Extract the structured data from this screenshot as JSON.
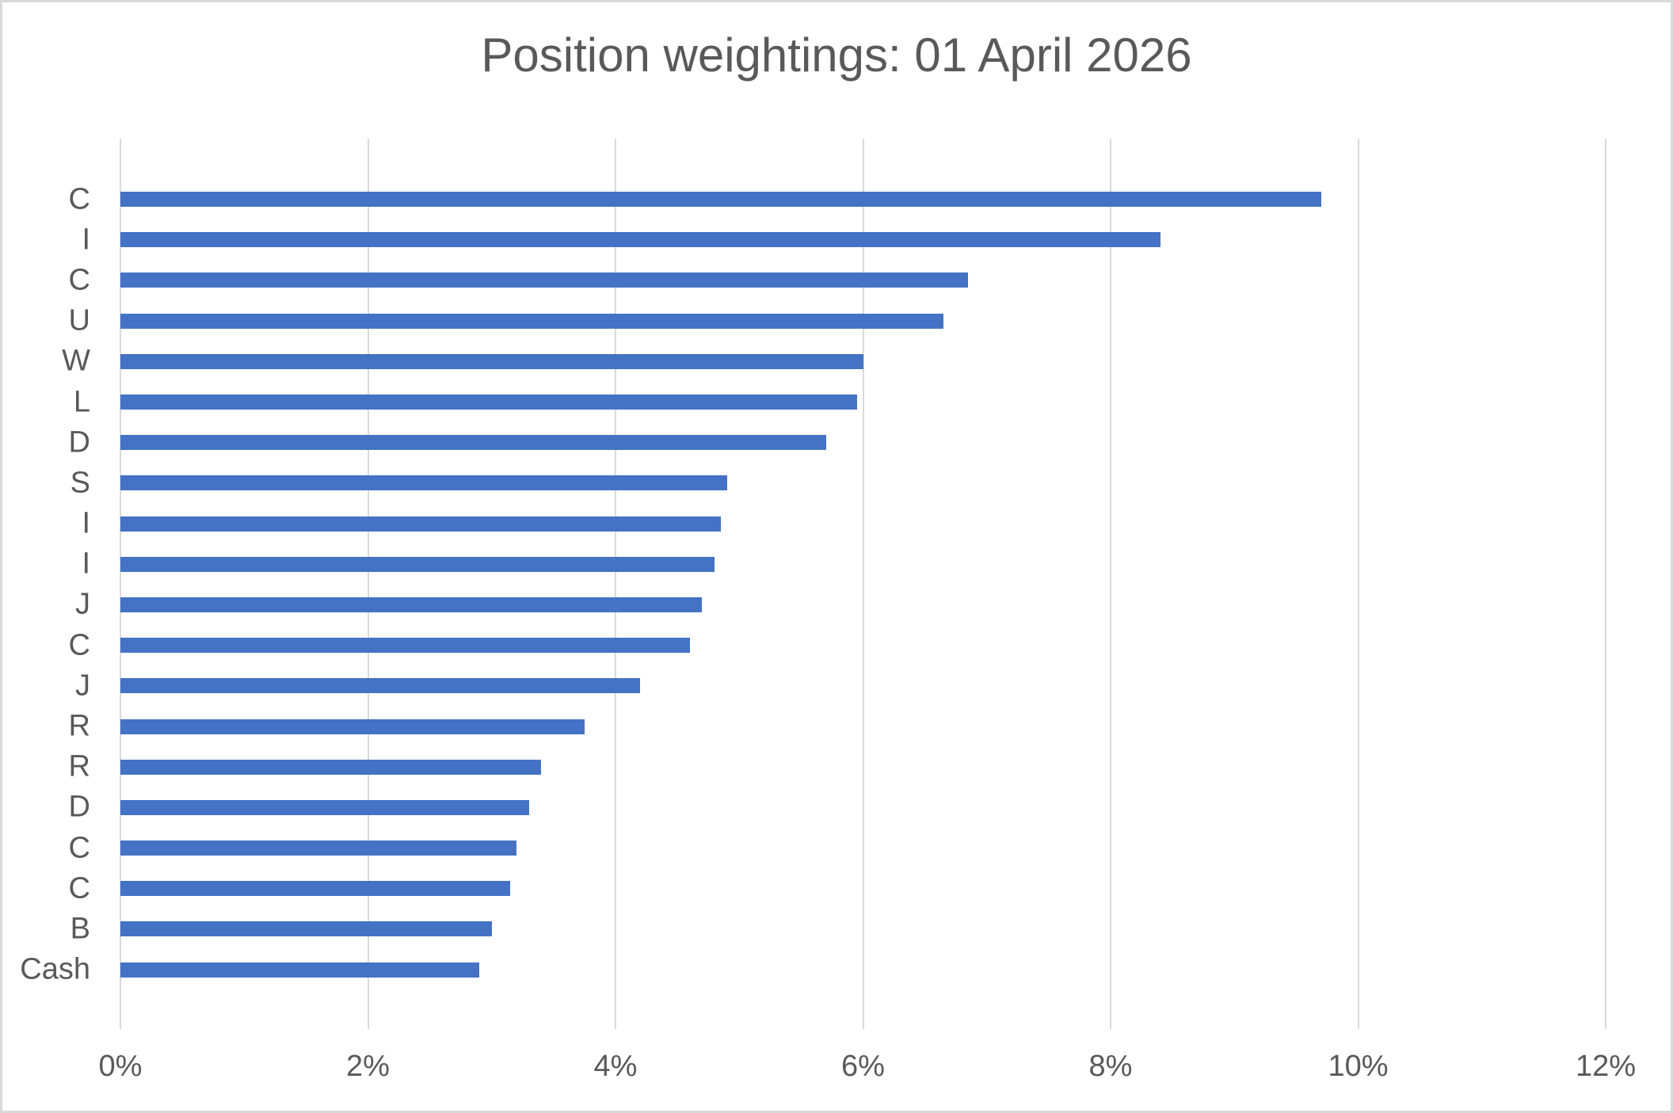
{
  "chart_data": {
    "type": "bar",
    "orientation": "horizontal",
    "title": "Position weightings: 01 April 2026",
    "categories": [
      "C",
      "I",
      "C",
      "U",
      "W",
      "L",
      "D",
      "S",
      "I",
      "I",
      "J",
      "C",
      "J",
      "R",
      "R",
      "D",
      "C",
      "C",
      "B",
      "Cash"
    ],
    "values": [
      9.7,
      8.4,
      6.85,
      6.65,
      6.0,
      5.95,
      5.7,
      4.9,
      4.85,
      4.8,
      4.7,
      4.6,
      4.2,
      3.75,
      3.4,
      3.3,
      3.2,
      3.15,
      3.0,
      2.9
    ],
    "x_tick_labels": [
      "0%",
      "2%",
      "4%",
      "6%",
      "8%",
      "10%",
      "12%"
    ],
    "x_tick_values": [
      0,
      2,
      4,
      6,
      8,
      10,
      12
    ],
    "xlim": [
      0,
      12
    ],
    "xlabel": "",
    "ylabel": "",
    "grid": true,
    "legend": false,
    "colors": {
      "bar": "#4472C4",
      "gridline": "#D9D9D9",
      "text": "#595959",
      "chart_border": "#D9D9D9",
      "background": "#FFFFFF"
    }
  }
}
